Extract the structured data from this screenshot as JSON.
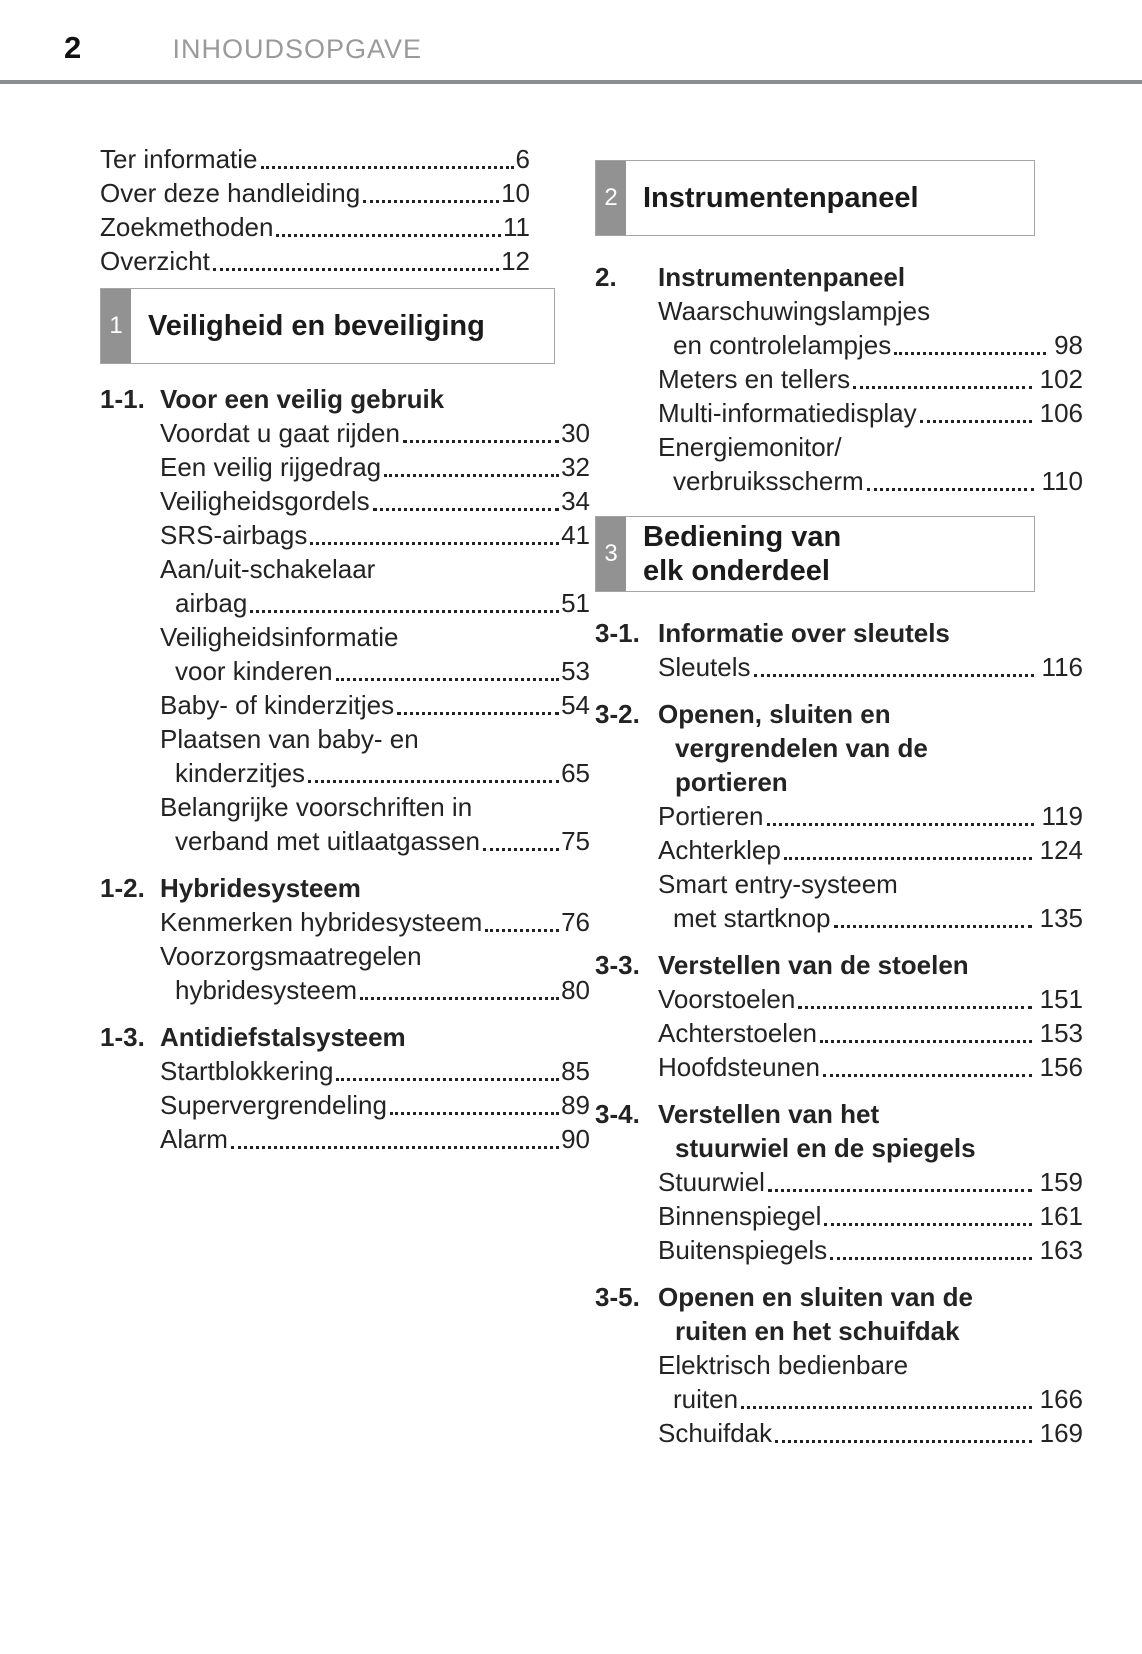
{
  "header": {
    "page_number": "2",
    "title": "INHOUDSOPGAVE"
  },
  "colors": {
    "text": "#232323",
    "muted_header": "#9a9a9b",
    "rule": "#8b8c8e",
    "chapter_tab_bg": "#929292",
    "chapter_tab_text": "#ffffff",
    "box_border": "#a5a5a5"
  },
  "left_column": {
    "intro_items": [
      {
        "lines": [
          "Ter informatie"
        ],
        "page": "6"
      },
      {
        "lines": [
          "Over deze handleiding"
        ],
        "page": "10"
      },
      {
        "lines": [
          "Zoekmethoden"
        ],
        "page": "11"
      },
      {
        "lines": [
          "Overzicht"
        ],
        "page": "12"
      }
    ],
    "sections": [
      {
        "chapter_box": {
          "number": "1",
          "title_lines": [
            "Veiligheid en beveiliging"
          ]
        },
        "groups": [
          {
            "id": "1-1.",
            "title_lines": [
              "Voor een veilig gebruik"
            ],
            "items": [
              {
                "lines": [
                  "Voordat u gaat rijden"
                ],
                "page": "30"
              },
              {
                "lines": [
                  "Een veilig rijgedrag"
                ],
                "page": "32"
              },
              {
                "lines": [
                  "Veiligheidsgordels"
                ],
                "page": "34"
              },
              {
                "lines": [
                  "SRS-airbags"
                ],
                "page": "41"
              },
              {
                "lines": [
                  "Aan/uit-schakelaar",
                  "airbag"
                ],
                "page": "51"
              },
              {
                "lines": [
                  "Veiligheidsinformatie",
                  "voor kinderen"
                ],
                "page": "53"
              },
              {
                "lines": [
                  "Baby- of kinderzitjes"
                ],
                "page": "54"
              },
              {
                "lines": [
                  "Plaatsen van baby- en",
                  "kinderzitjes"
                ],
                "page": "65"
              },
              {
                "lines": [
                  "Belangrijke voorschriften in",
                  "verband met uitlaatgassen"
                ],
                "page": "75"
              }
            ]
          },
          {
            "id": "1-2.",
            "title_lines": [
              "Hybridesysteem"
            ],
            "items": [
              {
                "lines": [
                  "Kenmerken hybridesysteem"
                ],
                "page": "76"
              },
              {
                "lines": [
                  "Voorzorgsmaatregelen",
                  "hybridesysteem"
                ],
                "page": "80"
              }
            ]
          },
          {
            "id": "1-3.",
            "title_lines": [
              "Antidiefstalsysteem"
            ],
            "items": [
              {
                "lines": [
                  "Startblokkering"
                ],
                "page": "85"
              },
              {
                "lines": [
                  "Supervergrendeling"
                ],
                "page": "89"
              },
              {
                "lines": [
                  "Alarm"
                ],
                "page": "90"
              }
            ]
          }
        ]
      }
    ]
  },
  "right_column": {
    "sections": [
      {
        "chapter_box": {
          "number": "2",
          "title_lines": [
            "Instrumentenpaneel"
          ]
        },
        "groups": [
          {
            "id": "2.",
            "title_lines": [
              "Instrumentenpaneel"
            ],
            "items": [
              {
                "lines": [
                  "Waarschuwingslampjes",
                  "en controlelampjes"
                ],
                "page": "98"
              },
              {
                "lines": [
                  "Meters en tellers"
                ],
                "page": "102"
              },
              {
                "lines": [
                  "Multi-informatiedisplay"
                ],
                "page": "106"
              },
              {
                "lines": [
                  "Energiemonitor/",
                  "verbruiksscherm"
                ],
                "page": "110"
              }
            ]
          }
        ]
      },
      {
        "chapter_box": {
          "number": "3",
          "title_lines": [
            "Bediening van",
            "elk onderdeel"
          ]
        },
        "groups": [
          {
            "id": "3-1.",
            "title_lines": [
              "Informatie over sleutels"
            ],
            "items": [
              {
                "lines": [
                  "Sleutels"
                ],
                "page": "116"
              }
            ]
          },
          {
            "id": "3-2.",
            "title_lines": [
              "Openen, sluiten en",
              "vergrendelen van de",
              "portieren"
            ],
            "items": [
              {
                "lines": [
                  "Portieren"
                ],
                "page": "119"
              },
              {
                "lines": [
                  "Achterklep"
                ],
                "page": "124"
              },
              {
                "lines": [
                  "Smart entry-systeem",
                  "met startknop"
                ],
                "page": "135"
              }
            ]
          },
          {
            "id": "3-3.",
            "title_lines": [
              "Verstellen van de stoelen"
            ],
            "items": [
              {
                "lines": [
                  "Voorstoelen"
                ],
                "page": "151"
              },
              {
                "lines": [
                  "Achterstoelen"
                ],
                "page": "153"
              },
              {
                "lines": [
                  "Hoofdsteunen"
                ],
                "page": "156"
              }
            ]
          },
          {
            "id": "3-4.",
            "title_lines": [
              "Verstellen van het",
              "stuurwiel en de spiegels"
            ],
            "items": [
              {
                "lines": [
                  "Stuurwiel"
                ],
                "page": "159"
              },
              {
                "lines": [
                  "Binnenspiegel"
                ],
                "page": "161"
              },
              {
                "lines": [
                  "Buitenspiegels"
                ],
                "page": "163"
              }
            ]
          },
          {
            "id": "3-5.",
            "title_lines": [
              "Openen en sluiten van de",
              "ruiten en het schuifdak"
            ],
            "items": [
              {
                "lines": [
                  "Elektrisch bedienbare",
                  "ruiten"
                ],
                "page": "166"
              },
              {
                "lines": [
                  "Schuifdak"
                ],
                "page": "169"
              }
            ]
          }
        ]
      }
    ]
  }
}
